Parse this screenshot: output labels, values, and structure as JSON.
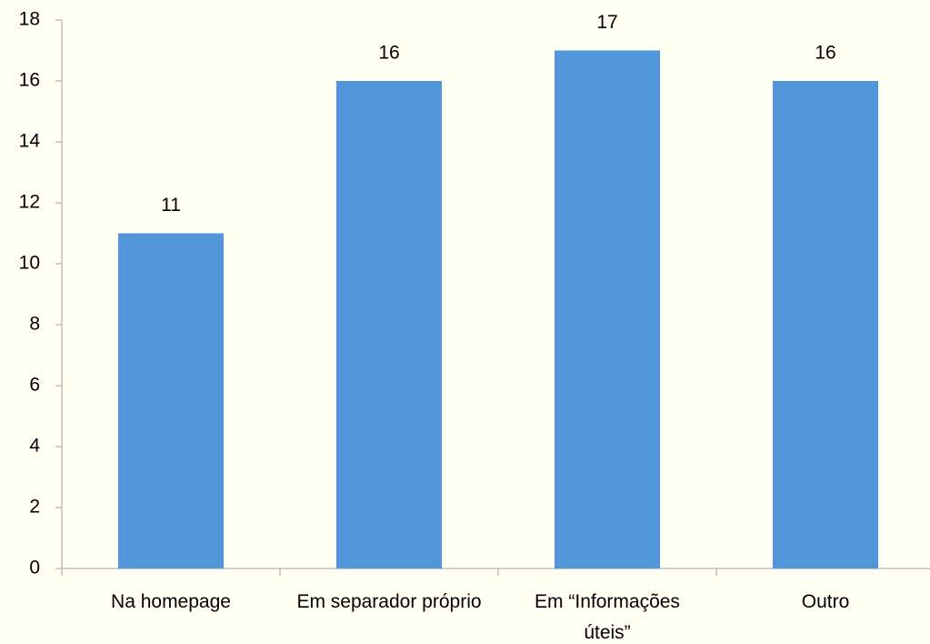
{
  "chart_data": {
    "type": "bar",
    "categories": [
      "Na homepage",
      "Em separador próprio",
      "Em “Informações úteis”",
      "Outro"
    ],
    "values": [
      11,
      16,
      17,
      16
    ],
    "color": "#5196d9",
    "ylim": [
      0,
      18
    ],
    "yticks": [
      0,
      2,
      4,
      6,
      8,
      10,
      12,
      14,
      16,
      18
    ]
  }
}
